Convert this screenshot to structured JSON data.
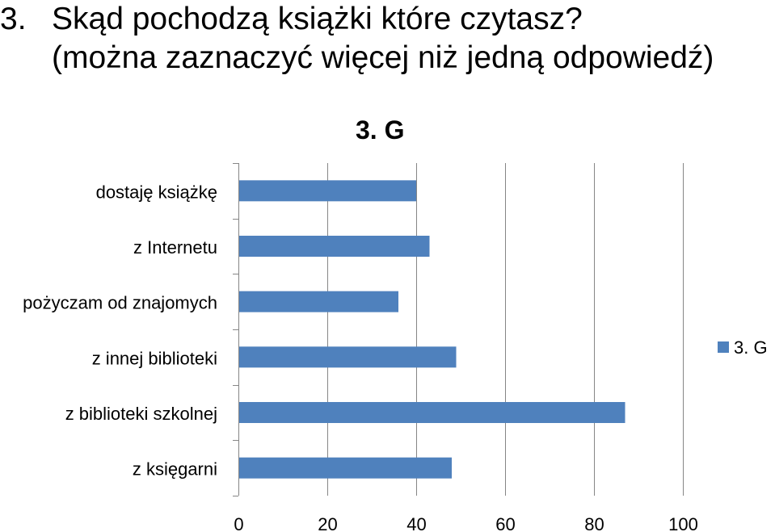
{
  "slide": {
    "question_number": "3.",
    "question_line1": "Skąd pochodzą książki które czytasz?",
    "question_line2": "(można zaznaczyć więcej niż jedną odpowiedź)"
  },
  "chart_data": {
    "type": "bar",
    "orientation": "horizontal",
    "title": "3. G",
    "categories": [
      "dostaję książkę",
      "z Internetu",
      "pożyczam od znajomych",
      "z innej biblioteki",
      "z biblioteki szkolnej",
      "z księgarni"
    ],
    "series": [
      {
        "name": "3. G",
        "values": [
          40,
          43,
          36,
          49,
          87,
          48
        ]
      }
    ],
    "xticks": [
      "0",
      "20",
      "40",
      "60",
      "80",
      "100"
    ],
    "xlim": [
      0,
      100
    ],
    "grid": true,
    "legend_position": "right",
    "colors": {
      "bar": "#4f81bd",
      "grid": "#868686",
      "axis": "#868686",
      "text": "#000000"
    }
  }
}
